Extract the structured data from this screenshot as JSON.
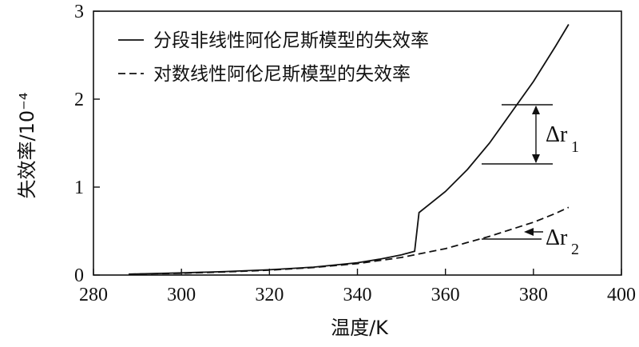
{
  "chart_data": {
    "type": "line",
    "xlabel": "温度/K",
    "ylabel": "失效率/10⁻⁴",
    "xlim": [
      280,
      400
    ],
    "ylim": [
      0,
      3
    ],
    "xticks": [
      "280",
      "300",
      "320",
      "340",
      "360",
      "380",
      "400"
    ],
    "yticks": [
      "0",
      "1",
      "2",
      "3"
    ],
    "grid": false,
    "legend_position": "top-left",
    "series": [
      {
        "name": "分段非线性阿伦尼斯模型的失效率",
        "style": "solid",
        "points": [
          [
            288,
            0.01
          ],
          [
            300,
            0.025
          ],
          [
            310,
            0.04
          ],
          [
            320,
            0.06
          ],
          [
            330,
            0.09
          ],
          [
            340,
            0.14
          ],
          [
            345,
            0.18
          ],
          [
            350,
            0.23
          ],
          [
            353,
            0.27
          ],
          [
            354,
            0.71
          ],
          [
            360,
            0.95
          ],
          [
            365,
            1.2
          ],
          [
            370,
            1.5
          ],
          [
            375,
            1.85
          ],
          [
            380,
            2.2
          ],
          [
            385,
            2.6
          ],
          [
            388,
            2.85
          ]
        ]
      },
      {
        "name": "对数线性阿伦尼斯模型的失效率",
        "style": "dashed",
        "points": [
          [
            288,
            0.01
          ],
          [
            300,
            0.02
          ],
          [
            310,
            0.035
          ],
          [
            320,
            0.055
          ],
          [
            330,
            0.085
          ],
          [
            340,
            0.13
          ],
          [
            350,
            0.2
          ],
          [
            355,
            0.25
          ],
          [
            360,
            0.3
          ],
          [
            365,
            0.37
          ],
          [
            370,
            0.44
          ],
          [
            375,
            0.52
          ],
          [
            380,
            0.6
          ],
          [
            385,
            0.7
          ],
          [
            388,
            0.77
          ]
        ]
      }
    ],
    "annotations": [
      {
        "label": "Δr",
        "subscript": "1"
      },
      {
        "label": "Δr",
        "subscript": "2"
      }
    ]
  }
}
